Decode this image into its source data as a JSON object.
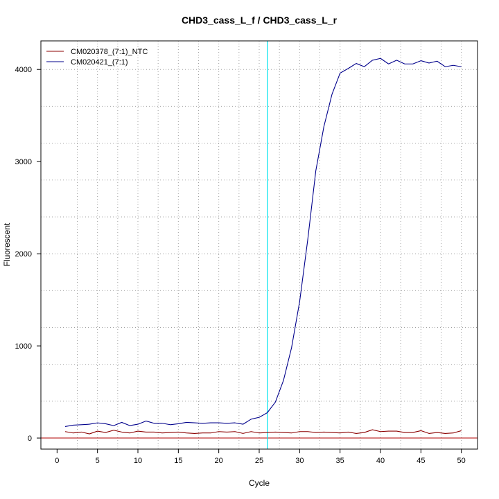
{
  "chart_data": {
    "type": "line",
    "title": "CHD3_cass_L_f / CHD3_cass_L_r",
    "xlabel": "Cycle",
    "ylabel": "Fluorescent",
    "xlim": [
      -2,
      52
    ],
    "ylim": [
      -120,
      4310
    ],
    "x_ticks": [
      "0",
      "5",
      "10",
      "15",
      "20",
      "25",
      "30",
      "35",
      "40",
      "45",
      "50"
    ],
    "y_ticks": [
      "0",
      "1000",
      "2000",
      "3000",
      "4000"
    ],
    "grid": true,
    "legend_position": "top-left",
    "threshold_x": 26,
    "threshold_color": "#00e5ee",
    "baseline_y": 0,
    "baseline_color": "#b00000",
    "x": [
      1,
      2,
      3,
      4,
      5,
      6,
      7,
      8,
      9,
      10,
      11,
      12,
      13,
      14,
      15,
      16,
      17,
      18,
      19,
      20,
      21,
      22,
      23,
      24,
      25,
      26,
      27,
      28,
      29,
      30,
      31,
      32,
      33,
      34,
      35,
      36,
      37,
      38,
      39,
      40,
      41,
      42,
      43,
      44,
      45,
      46,
      47,
      48,
      49,
      50
    ],
    "series": [
      {
        "name": "CM020378_(7:1)_NTC",
        "color": "#8b0000",
        "values": [
          70,
          55,
          65,
          45,
          75,
          60,
          85,
          65,
          55,
          75,
          65,
          65,
          55,
          60,
          65,
          55,
          50,
          55,
          55,
          70,
          65,
          70,
          50,
          70,
          55,
          60,
          65,
          60,
          55,
          70,
          70,
          60,
          65,
          60,
          55,
          65,
          50,
          60,
          90,
          70,
          75,
          75,
          60,
          60,
          80,
          50,
          60,
          50,
          55,
          80
        ]
      },
      {
        "name": "CM020421_(7:1)",
        "color": "#00008b",
        "values": [
          125,
          140,
          145,
          150,
          165,
          155,
          135,
          170,
          135,
          150,
          185,
          160,
          160,
          145,
          155,
          170,
          165,
          160,
          165,
          165,
          160,
          165,
          150,
          205,
          225,
          275,
          390,
          625,
          980,
          1480,
          2150,
          2900,
          3380,
          3730,
          3960,
          4010,
          4065,
          4030,
          4100,
          4120,
          4060,
          4100,
          4060,
          4060,
          4095,
          4070,
          4090,
          4030,
          4045,
          4030
        ]
      }
    ]
  }
}
